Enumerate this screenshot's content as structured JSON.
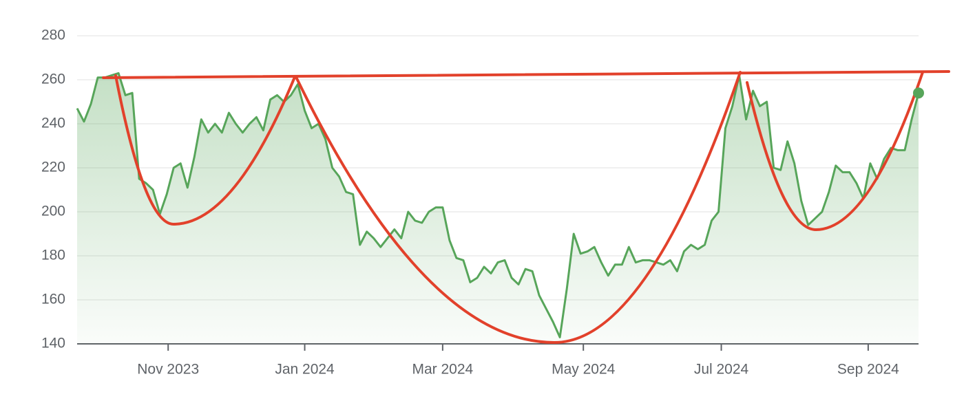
{
  "chart_data": {
    "type": "line",
    "color": "#57a55a",
    "grid": true,
    "xlim": [
      0,
      122
    ],
    "xticks": [
      {
        "value": 13.2,
        "label": "Nov 2023"
      },
      {
        "value": 33.0,
        "label": "Jan 2024"
      },
      {
        "value": 53.0,
        "label": "Mar 2024"
      },
      {
        "value": 73.4,
        "label": "May 2024"
      },
      {
        "value": 93.4,
        "label": "Jul 2024"
      },
      {
        "value": 114.7,
        "label": "Sep 2024"
      }
    ],
    "ylim": [
      140,
      280
    ],
    "yticks": [
      140,
      160,
      180,
      200,
      220,
      240,
      260,
      280
    ],
    "values": [
      247,
      241,
      249,
      261,
      261,
      262,
      263,
      253,
      254,
      215,
      213,
      210,
      199,
      208,
      220,
      222,
      211,
      225,
      242,
      236,
      240,
      236,
      245,
      240,
      236,
      240,
      243,
      237,
      251,
      253,
      250,
      253,
      258,
      246,
      238,
      240,
      233,
      220,
      216,
      209,
      208,
      185,
      191,
      188,
      184,
      188,
      192,
      188,
      200,
      196,
      195,
      200,
      202,
      202,
      187,
      179,
      178,
      168,
      170,
      175,
      172,
      177,
      178,
      170,
      167,
      174,
      173,
      162,
      156,
      150,
      143,
      165,
      190,
      181,
      182,
      184,
      177,
      171,
      176,
      176,
      184,
      177,
      178,
      178,
      177,
      176,
      178,
      173,
      182,
      185,
      183,
      185,
      196,
      200,
      238,
      248,
      262,
      242,
      255,
      248,
      250,
      220,
      219,
      232,
      222,
      205,
      194,
      197,
      200,
      209,
      221,
      218,
      218,
      213,
      206,
      222,
      215,
      224,
      229,
      228,
      228,
      242,
      254
    ]
  }
}
